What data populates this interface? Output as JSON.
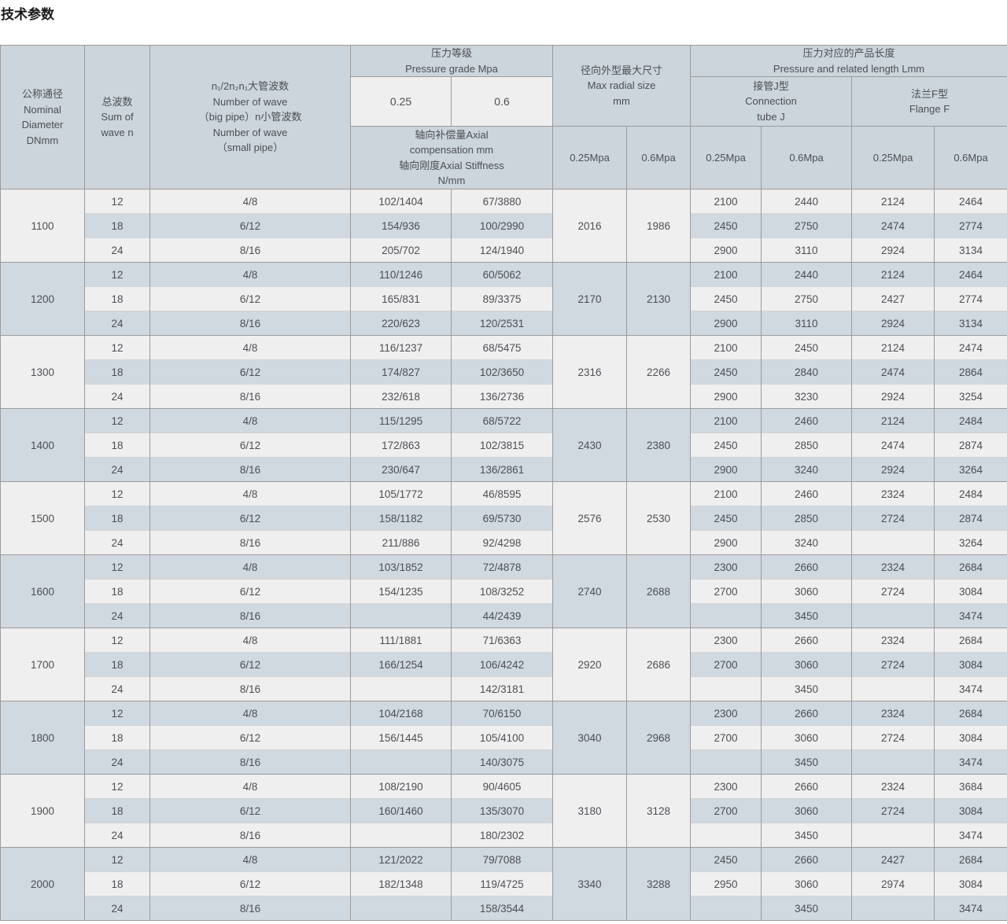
{
  "page_title": "技术参数",
  "colors": {
    "header_bg": "#ccd5dc",
    "row_light": "#f0eff0",
    "row_blue": "#d0d8e0",
    "border": "#9b9b9b",
    "border_inner": "#d4d4d4",
    "text": "#4d4f53",
    "title_text": "#1a1a1a"
  },
  "table": {
    "header": {
      "nominal_diameter": "公称通径\nNominal\nDiameter\nDNmm",
      "sum_of_wave": "总波数\nSum of\nwave n",
      "wave_numbers": "n₁/2n₂n₁大管波数\nNumber of wave\n（big pipe）n小管波数\nNumber of wave\n（small pipe）",
      "pressure_grade": "压力等级\nPressure grade Mpa",
      "pressure_025": "0.25",
      "pressure_06": "0.6",
      "axial": "轴向补偿量Axial\ncompensation mm\n轴向刚度Axial Stiffness\nN/mm",
      "max_radial": "径向外型最大尺寸\nMax radial size\nmm",
      "pressure_length": "压力对应的产品长度\nPressure and related length Lmm",
      "connection_j": "接管J型\nConnection\ntube J",
      "flange_f": "法兰F型\nFlange F",
      "mpa_labels": [
        "0.25Mpa",
        "0.6Mpa",
        "0.25Mpa",
        "0.6Mpa",
        "0.25Mpa",
        "0.6Mpa"
      ]
    },
    "groups": [
      {
        "dn": "1100",
        "radial": {
          "p025": "2016",
          "p06": "1986"
        },
        "rows": [
          {
            "waves": "12",
            "pipe": "4/8",
            "comp025": "102/1404",
            "comp06": "67/3880",
            "j025": "2100",
            "j06": "2440",
            "f025": "2124",
            "f06": "2464"
          },
          {
            "waves": "18",
            "pipe": "6/12",
            "comp025": "154/936",
            "comp06": "100/2990",
            "j025": "2450",
            "j06": "2750",
            "f025": "2474",
            "f06": "2774"
          },
          {
            "waves": "24",
            "pipe": "8/16",
            "comp025": "205/702",
            "comp06": "124/1940",
            "j025": "2900",
            "j06": "3110",
            "f025": "2924",
            "f06": "3134"
          }
        ]
      },
      {
        "dn": "1200",
        "radial": {
          "p025": "2170",
          "p06": "2130"
        },
        "rows": [
          {
            "waves": "12",
            "pipe": "4/8",
            "comp025": "110/1246",
            "comp06": "60/5062",
            "j025": "2100",
            "j06": "2440",
            "f025": "2124",
            "f06": "2464"
          },
          {
            "waves": "18",
            "pipe": "6/12",
            "comp025": "165/831",
            "comp06": "89/3375",
            "j025": "2450",
            "j06": "2750",
            "f025": "2427",
            "f06": "2774"
          },
          {
            "waves": "24",
            "pipe": "8/16",
            "comp025": "220/623",
            "comp06": "120/2531",
            "j025": "2900",
            "j06": "3110",
            "f025": "2924",
            "f06": "3134"
          }
        ]
      },
      {
        "dn": "1300",
        "radial": {
          "p025": "2316",
          "p06": "2266"
        },
        "rows": [
          {
            "waves": "12",
            "pipe": "4/8",
            "comp025": "116/1237",
            "comp06": "68/5475",
            "j025": "2100",
            "j06": "2450",
            "f025": "2124",
            "f06": "2474"
          },
          {
            "waves": "18",
            "pipe": "6/12",
            "comp025": "174/827",
            "comp06": "102/3650",
            "j025": "2450",
            "j06": "2840",
            "f025": "2474",
            "f06": "2864"
          },
          {
            "waves": "24",
            "pipe": "8/16",
            "comp025": "232/618",
            "comp06": "136/2736",
            "j025": "2900",
            "j06": "3230",
            "f025": "2924",
            "f06": "3254"
          }
        ]
      },
      {
        "dn": "1400",
        "radial": {
          "p025": "2430",
          "p06": "2380"
        },
        "rows": [
          {
            "waves": "12",
            "pipe": "4/8",
            "comp025": "115/1295",
            "comp06": "68/5722",
            "j025": "2100",
            "j06": "2460",
            "f025": "2124",
            "f06": "2484"
          },
          {
            "waves": "18",
            "pipe": "6/12",
            "comp025": "172/863",
            "comp06": "102/3815",
            "j025": "2450",
            "j06": "2850",
            "f025": "2474",
            "f06": "2874"
          },
          {
            "waves": "24",
            "pipe": "8/16",
            "comp025": "230/647",
            "comp06": "136/2861",
            "j025": "2900",
            "j06": "3240",
            "f025": "2924",
            "f06": "3264"
          }
        ]
      },
      {
        "dn": "1500",
        "radial": {
          "p025": "2576",
          "p06": "2530"
        },
        "rows": [
          {
            "waves": "12",
            "pipe": "4/8",
            "comp025": "105/1772",
            "comp06": "46/8595",
            "j025": "2100",
            "j06": "2460",
            "f025": "2324",
            "f06": "2484"
          },
          {
            "waves": "18",
            "pipe": "6/12",
            "comp025": "158/1182",
            "comp06": "69/5730",
            "j025": "2450",
            "j06": "2850",
            "f025": "2724",
            "f06": "2874"
          },
          {
            "waves": "24",
            "pipe": "8/16",
            "comp025": "211/886",
            "comp06": "92/4298",
            "j025": "2900",
            "j06": "3240",
            "f025": "",
            "f06": "3264"
          }
        ]
      },
      {
        "dn": "1600",
        "radial": {
          "p025": "2740",
          "p06": "2688"
        },
        "rows": [
          {
            "waves": "12",
            "pipe": "4/8",
            "comp025": "103/1852",
            "comp06": "72/4878",
            "j025": "2300",
            "j06": "2660",
            "f025": "2324",
            "f06": "2684"
          },
          {
            "waves": "18",
            "pipe": "6/12",
            "comp025": "154/1235",
            "comp06": "108/3252",
            "j025": "2700",
            "j06": "3060",
            "f025": "2724",
            "f06": "3084"
          },
          {
            "waves": "24",
            "pipe": "8/16",
            "comp025": "",
            "comp06": "44/2439",
            "j025": "",
            "j06": "3450",
            "f025": "",
            "f06": "3474"
          }
        ]
      },
      {
        "dn": "1700",
        "radial": {
          "p025": "2920",
          "p06": "2686"
        },
        "rows": [
          {
            "waves": "12",
            "pipe": "4/8",
            "comp025": "111/1881",
            "comp06": "71/6363",
            "j025": "2300",
            "j06": "2660",
            "f025": "2324",
            "f06": "2684"
          },
          {
            "waves": "18",
            "pipe": "6/12",
            "comp025": "166/1254",
            "comp06": "106/4242",
            "j025": "2700",
            "j06": "3060",
            "f025": "2724",
            "f06": "3084"
          },
          {
            "waves": "24",
            "pipe": "8/16",
            "comp025": "",
            "comp06": "142/3181",
            "j025": "",
            "j06": "3450",
            "f025": "",
            "f06": "3474"
          }
        ]
      },
      {
        "dn": "1800",
        "radial": {
          "p025": "3040",
          "p06": "2968"
        },
        "rows": [
          {
            "waves": "12",
            "pipe": "4/8",
            "comp025": "104/2168",
            "comp06": "70/6150",
            "j025": "2300",
            "j06": "2660",
            "f025": "2324",
            "f06": "2684"
          },
          {
            "waves": "18",
            "pipe": "6/12",
            "comp025": "156/1445",
            "comp06": "105/4100",
            "j025": "2700",
            "j06": "3060",
            "f025": "2724",
            "f06": "3084"
          },
          {
            "waves": "24",
            "pipe": "8/16",
            "comp025": "",
            "comp06": "140/3075",
            "j025": "",
            "j06": "3450",
            "f025": "",
            "f06": "3474"
          }
        ]
      },
      {
        "dn": "1900",
        "radial": {
          "p025": "3180",
          "p06": "3128"
        },
        "rows": [
          {
            "waves": "12",
            "pipe": "4/8",
            "comp025": "108/2190",
            "comp06": "90/4605",
            "j025": "2300",
            "j06": "2660",
            "f025": "2324",
            "f06": "3684"
          },
          {
            "waves": "18",
            "pipe": "6/12",
            "comp025": "160/1460",
            "comp06": "135/3070",
            "j025": "2700",
            "j06": "3060",
            "f025": "2724",
            "f06": "3084"
          },
          {
            "waves": "24",
            "pipe": "8/16",
            "comp025": "",
            "comp06": "180/2302",
            "j025": "",
            "j06": "3450",
            "f025": "",
            "f06": "3474"
          }
        ]
      },
      {
        "dn": "2000",
        "radial": {
          "p025": "3340",
          "p06": "3288"
        },
        "rows": [
          {
            "waves": "12",
            "pipe": "4/8",
            "comp025": "121/2022",
            "comp06": "79/7088",
            "j025": "2450",
            "j06": "2660",
            "f025": "2427",
            "f06": "2684"
          },
          {
            "waves": "18",
            "pipe": "6/12",
            "comp025": "182/1348",
            "comp06": "119/4725",
            "j025": "2950",
            "j06": "3060",
            "f025": "2974",
            "f06": "3084"
          },
          {
            "waves": "24",
            "pipe": "8/16",
            "comp025": "",
            "comp06": "158/3544",
            "j025": "",
            "j06": "3450",
            "f025": "",
            "f06": "3474"
          }
        ]
      }
    ]
  }
}
